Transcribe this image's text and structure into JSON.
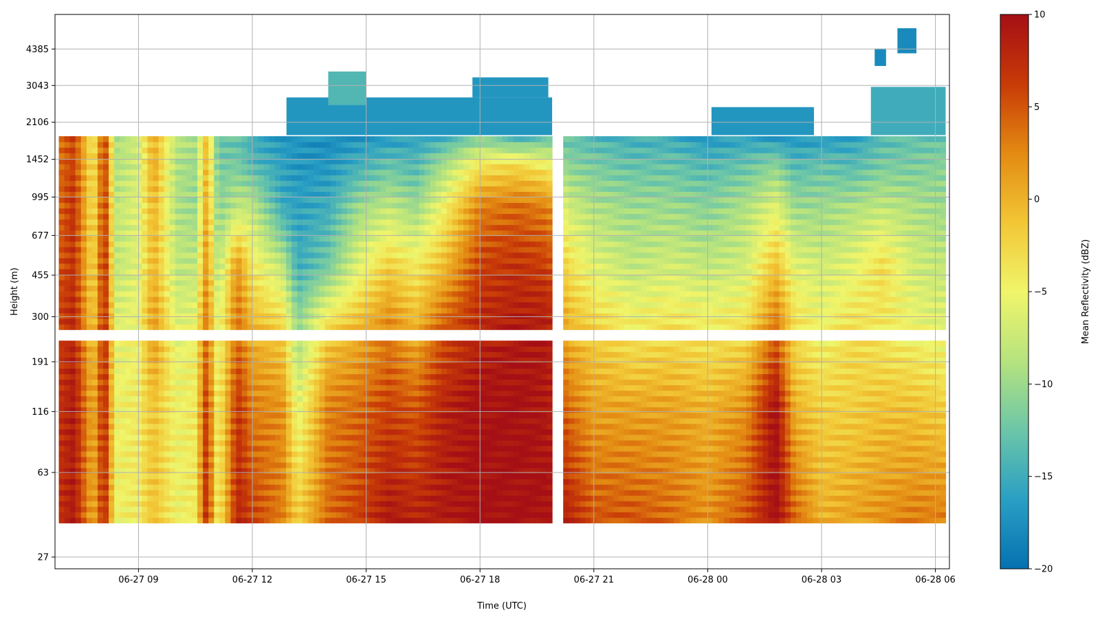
{
  "chart_data": {
    "type": "heatmap",
    "title": "",
    "xlabel": "Time (UTC)",
    "ylabel": "Height (m)",
    "colorbar_label": "Mean Reflectivity (dBZ)",
    "colormap": [
      "#0571b0",
      "#2a9fc4",
      "#6cc6a8",
      "#b6e37e",
      "#f0f56a",
      "#f2c635",
      "#e38a12",
      "#c83a07",
      "#a50f15"
    ],
    "clim": [
      -20,
      10
    ],
    "colorbar_ticks": [
      -20,
      -15,
      -10,
      -5,
      0,
      5,
      10
    ],
    "y_scale": "log",
    "y_ticks": [
      27,
      63,
      116,
      191,
      300,
      455,
      677,
      995,
      1452,
      2106,
      3043,
      4385
    ],
    "ylim": [
      24,
      6200
    ],
    "x_ticks": [
      "06-27 09",
      "06-27 12",
      "06-27 15",
      "06-27 18",
      "06-27 21",
      "06-28 00",
      "06-28 03",
      "06-28 06"
    ],
    "x_tick_hours": [
      9,
      12,
      15,
      18,
      21,
      24,
      27,
      30
    ],
    "xlim_hours": [
      6.8,
      30.37
    ],
    "data_extent": {
      "hours": [
        6.9,
        30.27
      ],
      "height_m": [
        38,
        1830
      ]
    },
    "gaps": {
      "height_m": [
        [
          235,
          265
        ]
      ],
      "hours": [
        [
          19.95,
          20.15
        ]
      ]
    },
    "grid": true,
    "time_keyframes": [
      {
        "hour": 6.9,
        "profile": [
          7,
          7,
          6,
          5,
          4,
          4,
          3
        ]
      },
      {
        "hour": 7.3,
        "profile": [
          9,
          9,
          8,
          7,
          7,
          6,
          6
        ]
      },
      {
        "hour": 7.8,
        "profile": [
          0,
          0,
          -2,
          -3,
          -4,
          -4,
          -5
        ]
      },
      {
        "hour": 8.1,
        "profile": [
          8,
          8,
          8,
          8,
          7,
          7,
          7
        ]
      },
      {
        "hour": 8.4,
        "profile": [
          -5,
          -5,
          -6,
          -8,
          -8,
          -9,
          -9
        ]
      },
      {
        "hour": 9.0,
        "profile": [
          -4,
          -4,
          -5,
          -6,
          -6,
          -7,
          -7
        ]
      },
      {
        "hour": 9.4,
        "profile": [
          -1,
          -1,
          2,
          0,
          0,
          1,
          0
        ]
      },
      {
        "hour": 10.0,
        "profile": [
          -5,
          -5,
          -6,
          -8,
          -9,
          -9,
          -8
        ]
      },
      {
        "hour": 10.5,
        "profile": [
          -4,
          -4,
          -5,
          -8,
          -10,
          -10,
          -9
        ]
      },
      {
        "hour": 10.8,
        "profile": [
          8,
          7,
          4,
          2,
          1,
          0,
          0
        ]
      },
      {
        "hour": 11.1,
        "profile": [
          -5,
          -5,
          -6,
          -9,
          -11,
          -12,
          -13
        ]
      },
      {
        "hour": 11.6,
        "profile": [
          8,
          7,
          4,
          2,
          -8,
          -12,
          -13
        ]
      },
      {
        "hour": 12.0,
        "profile": [
          6,
          3,
          0,
          -4,
          -8,
          -14,
          -15
        ]
      },
      {
        "hour": 12.8,
        "profile": [
          3,
          2,
          -2,
          -8,
          -15,
          -16,
          -17
        ]
      },
      {
        "hour": 13.2,
        "profile": [
          -2,
          -6,
          -10,
          -15,
          -16,
          -17,
          -17
        ]
      },
      {
        "hour": 14.0,
        "profile": [
          4,
          3,
          -2,
          -12,
          -15,
          -17,
          -18
        ]
      },
      {
        "hour": 14.8,
        "profile": [
          6,
          4,
          0,
          -6,
          -10,
          -15,
          -17
        ]
      },
      {
        "hour": 15.6,
        "profile": [
          9,
          6,
          3,
          -2,
          -8,
          -13,
          -17
        ]
      },
      {
        "hour": 16.3,
        "profile": [
          8,
          5,
          0,
          -4,
          -10,
          -14,
          -16
        ]
      },
      {
        "hour": 17.0,
        "profile": [
          9,
          8,
          5,
          -1,
          -5,
          -10,
          -15
        ]
      },
      {
        "hour": 18.0,
        "profile": [
          10,
          10,
          8,
          6,
          3,
          -4,
          -12
        ]
      },
      {
        "hour": 19.0,
        "profile": [
          10,
          10,
          9,
          7,
          4,
          -3,
          -15
        ]
      },
      {
        "hour": 19.8,
        "profile": [
          10,
          9,
          9,
          6,
          3,
          -5,
          -13
        ]
      },
      {
        "hour": 20.3,
        "profile": [
          8,
          4,
          0,
          -3,
          -7,
          -11,
          -13
        ]
      },
      {
        "hour": 21.0,
        "profile": [
          5,
          1,
          -2,
          -6,
          -9,
          -12,
          -14
        ]
      },
      {
        "hour": 22.0,
        "profile": [
          5,
          1,
          -4,
          -8,
          -10,
          -13,
          -15
        ]
      },
      {
        "hour": 23.0,
        "profile": [
          4,
          1,
          -3,
          -7,
          -10,
          -13,
          -15
        ]
      },
      {
        "hour": 24.0,
        "profile": [
          2,
          0,
          -4,
          -8,
          -11,
          -14,
          -17
        ]
      },
      {
        "hour": 25.0,
        "profile": [
          5,
          2,
          -3,
          -7,
          -9,
          -13,
          -16
        ]
      },
      {
        "hour": 25.8,
        "profile": [
          10,
          10,
          4,
          -1,
          -6,
          -11,
          -17
        ]
      },
      {
        "hour": 26.3,
        "profile": [
          4,
          0,
          -3,
          -6,
          -10,
          -14,
          -17
        ]
      },
      {
        "hour": 27.0,
        "profile": [
          0,
          -2,
          -5,
          -7,
          -10,
          -13,
          -17
        ]
      },
      {
        "hour": 27.8,
        "profile": [
          1,
          -2,
          -3,
          -6,
          -9,
          -14,
          -16
        ]
      },
      {
        "hour": 28.6,
        "profile": [
          2,
          -1,
          -4,
          -3,
          -8,
          -12,
          -14
        ]
      },
      {
        "hour": 29.4,
        "profile": [
          3,
          -1,
          -5,
          -7,
          -9,
          -12,
          -13
        ]
      },
      {
        "hour": 30.27,
        "profile": [
          3,
          -2,
          -6,
          -8,
          -10,
          -11,
          -13
        ]
      }
    ],
    "profile_heights_m": [
      40,
      120,
      260,
      500,
      900,
      1400,
      1830
    ],
    "cloud_patches": [
      {
        "hours": [
          12.9,
          19.9
        ],
        "height_m": [
          1850,
          2700
        ],
        "value": -17
      },
      {
        "hours": [
          14.0,
          15.0
        ],
        "height_m": [
          2500,
          3500
        ],
        "value": -14
      },
      {
        "hours": [
          17.8,
          19.8
        ],
        "height_m": [
          2700,
          3300
        ],
        "value": -17
      },
      {
        "hours": [
          24.1,
          26.8
        ],
        "height_m": [
          1850,
          2450
        ],
        "value": -17
      },
      {
        "hours": [
          28.3,
          30.27
        ],
        "height_m": [
          1850,
          3000
        ],
        "value": -15
      },
      {
        "hours": [
          29.0,
          29.5
        ],
        "height_m": [
          4200,
          5400
        ],
        "value": -18
      },
      {
        "hours": [
          28.4,
          28.7
        ],
        "height_m": [
          3700,
          4400
        ],
        "value": -18
      }
    ]
  }
}
